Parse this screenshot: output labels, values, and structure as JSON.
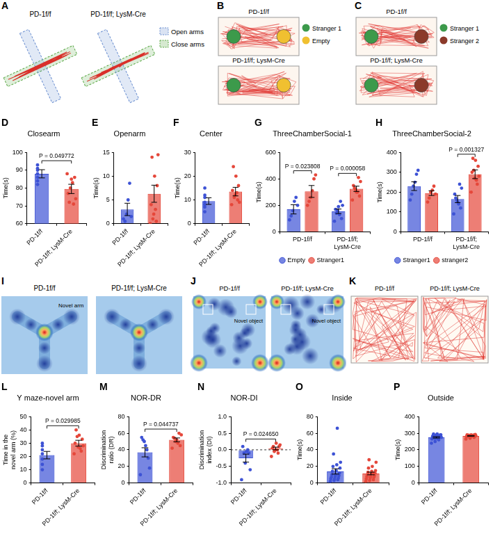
{
  "schematics": {
    "A": {
      "panel": "A",
      "titles": [
        "PD-1f/f",
        "PD-1f/f; LysM-Cre"
      ],
      "legend": [
        {
          "text": "Open arms",
          "color": "#6b8fd0"
        },
        {
          "text": "Close arms",
          "color": "#5aa845"
        }
      ]
    },
    "B": {
      "panel": "B",
      "titles": [
        "PD-1f/f",
        "PD-1f/f; LysM-Cre"
      ],
      "legend": [
        {
          "text": "Stranger 1",
          "color": "#3c9a4b"
        },
        {
          "text": "Empty",
          "color": "#f0c030"
        }
      ]
    },
    "C": {
      "panel": "C",
      "titles": [
        "PD-1f/f",
        "PD-1f/f; LysM-Cre"
      ],
      "legend": [
        {
          "text": "Stranger 1",
          "color": "#3c9a4b"
        },
        {
          "text": "Stranger 2",
          "color": "#8b3a2a"
        }
      ]
    },
    "I": {
      "panel": "I",
      "titles": [
        "PD-1f/f",
        "PD-1f/f; LysM-Cre"
      ],
      "label": "Novel arm"
    },
    "J": {
      "panel": "J",
      "titles": [
        "PD-1f/f",
        "PD-1f/f; LysM-Cre"
      ],
      "label": "Novel object"
    },
    "K": {
      "panel": "K",
      "titles": [
        "PD-1f/f",
        "PD-1f/f; LysM-Cre"
      ]
    }
  },
  "chart_data": [
    {
      "panel": "D",
      "type": "bar",
      "title": "Closearm",
      "y_label": "Time(s)",
      "categories": [
        "PD-1f/f",
        "PD-1f/f; LysM-Cre"
      ],
      "values": [
        88,
        79.5
      ],
      "errors": [
        2.3,
        2.6
      ],
      "points": [
        [
          93,
          90,
          88,
          86,
          84,
          91,
          82
        ],
        [
          88,
          86,
          83,
          80,
          77,
          74,
          71,
          85,
          72
        ]
      ],
      "colors": [
        "#3d52d5",
        "#e5473a"
      ],
      "ylim": [
        60,
        100
      ],
      "yticks": [
        60,
        70,
        80,
        90,
        100
      ],
      "grid": false,
      "annotations": [
        {
          "text": "P = 0.049772",
          "between": [
            "PD-1f/f",
            "PD-1f/f; LysM-Cre"
          ]
        }
      ]
    },
    {
      "panel": "E",
      "type": "bar",
      "title": "Openarm",
      "y_label": "Time(s)",
      "categories": [
        "PD-1f/f",
        "PD-1f/f; LysM-Cre"
      ],
      "values": [
        3,
        6.3
      ],
      "errors": [
        1.3,
        1.8
      ],
      "points": [
        [
          1,
          0.5,
          2,
          5,
          8.5,
          1.5
        ],
        [
          0,
          0.5,
          2,
          4,
          8,
          10,
          14,
          14.5,
          3,
          1
        ]
      ],
      "colors": [
        "#3d52d5",
        "#e5473a"
      ],
      "ylim": [
        0,
        15
      ],
      "yticks": [
        0,
        5,
        10,
        15
      ],
      "grid": false
    },
    {
      "panel": "F",
      "type": "bar",
      "title": "Center",
      "y_label": "Time(s)",
      "categories": [
        "PD-1f/f",
        "PD-1f/f; LysM-Cre"
      ],
      "values": [
        9.5,
        13.5
      ],
      "errors": [
        1.4,
        1.8
      ],
      "points": [
        [
          5,
          7,
          9,
          12,
          15,
          8,
          11
        ],
        [
          8,
          10,
          12,
          14,
          16,
          20,
          24,
          9,
          13,
          11
        ]
      ],
      "colors": [
        "#3d52d5",
        "#e5473a"
      ],
      "ylim": [
        0,
        30
      ],
      "yticks": [
        0,
        10,
        20,
        30
      ],
      "grid": false
    },
    {
      "panel": "G",
      "type": "bar",
      "title": "ThreeChamberSocial-1",
      "y_label": "Time(s)",
      "categories": [
        "PD-1f/f",
        "PD-1f/f; LysM-Cre"
      ],
      "series": [
        {
          "name": "Empty",
          "color": "#3d52d5",
          "values": [
            170,
            155
          ],
          "errors": [
            35,
            17
          ],
          "points": [
            [
              90,
              120,
              160,
              230,
              260,
              200
            ],
            [
              80,
              100,
              130,
              160,
              170,
              200,
              230,
              190,
              140
            ]
          ]
        },
        {
          "name": "Stranger1",
          "color": "#e5473a",
          "values": [
            305,
            325
          ],
          "errors": [
            45,
            20
          ],
          "points": [
            [
              200,
              230,
              260,
              310,
              400,
              430
            ],
            [
              240,
              270,
              300,
              320,
              350,
              380,
              410,
              300,
              330
            ]
          ]
        }
      ],
      "ylim": [
        0,
        600
      ],
      "yticks": [
        0,
        200,
        400,
        600
      ],
      "grid": false,
      "legend": "bottom",
      "annotations": [
        {
          "text": "P = 0.023808",
          "category": "PD-1f/f",
          "between": [
            "Empty",
            "Stranger1"
          ]
        },
        {
          "text": "P = 0.000058",
          "category": "PD-1f/f; LysM-Cre",
          "between": [
            "Empty",
            "Stranger1"
          ]
        }
      ]
    },
    {
      "panel": "H",
      "type": "bar",
      "title": "ThreeChamberSocial-2",
      "y_label": "Time(s)",
      "categories": [
        "PD-1f/f",
        "PD-1f/f; LysM-Cre"
      ],
      "series": [
        {
          "name": "Stranger1",
          "color": "#3d52d5",
          "values": [
            230,
            165
          ],
          "errors": [
            22,
            18
          ],
          "points": [
            [
              160,
              190,
              230,
              250,
              290,
              310
            ],
            [
              90,
              120,
              140,
              160,
              190,
              220,
              240,
              150,
              170
            ]
          ]
        },
        {
          "name": "stranger2",
          "color": "#e5473a",
          "values": [
            195,
            290
          ],
          "errors": [
            12,
            22
          ],
          "points": [
            [
              150,
              170,
              200,
              210,
              230,
              190
            ],
            [
              200,
              240,
              270,
              300,
              330,
              360,
              370,
              280,
              260,
              310
            ]
          ]
        }
      ],
      "ylim": [
        0,
        400
      ],
      "yticks": [
        0,
        100,
        200,
        300,
        400
      ],
      "grid": false,
      "legend": "bottom",
      "annotations": [
        {
          "text": "P = 0.001327",
          "category": "PD-1f/f; LysM-Cre",
          "between": [
            "Stranger1",
            "stranger2"
          ]
        }
      ]
    },
    {
      "panel": "L",
      "type": "bar",
      "title": "Y maze-novel arm",
      "y_label": "Time in the novel arm (%)",
      "categories": [
        "PD-1f/f",
        "PD-1f/f; LysM-Cre"
      ],
      "values": [
        21,
        30
      ],
      "errors": [
        2.8,
        2.2
      ],
      "points": [
        [
          10,
          14,
          18,
          22,
          25,
          28,
          30
        ],
        [
          22,
          24,
          27,
          30,
          33,
          36,
          40,
          28,
          26,
          35
        ]
      ],
      "colors": [
        "#3d52d5",
        "#e5473a"
      ],
      "ylim": [
        0,
        50
      ],
      "yticks": [
        0,
        10,
        20,
        30,
        40,
        50
      ],
      "grid": false,
      "annotations": [
        {
          "text": "P = 0.029985",
          "between": [
            "PD-1f/f",
            "PD-1f/f; LysM-Cre"
          ]
        }
      ]
    },
    {
      "panel": "M",
      "type": "bar",
      "title": "NOR-DR",
      "y_label": "Discrimination ratio (DR)",
      "categories": [
        "PD-1f/f",
        "PD-1f/f; LysM-Cre"
      ],
      "values": [
        37,
        52
      ],
      "errors": [
        5.5,
        2.3
      ],
      "points": [
        [
          10,
          18,
          30,
          40,
          45,
          50,
          52,
          55
        ],
        [
          42,
          45,
          48,
          50,
          55,
          58,
          60,
          52,
          54
        ]
      ],
      "colors": [
        "#3d52d5",
        "#e5473a"
      ],
      "ylim": [
        0,
        80
      ],
      "yticks": [
        0,
        20,
        40,
        60,
        80
      ],
      "grid": false,
      "annotations": [
        {
          "text": "P = 0.044737",
          "between": [
            "PD-1f/f",
            "PD-1f/f; LysM-Cre"
          ]
        }
      ]
    },
    {
      "panel": "N",
      "type": "bar",
      "title": "NOR-DI",
      "y_label": "Discrimination index (DI)",
      "categories": [
        "PD-1f/f",
        "PD-1f/f; LysM-Cre"
      ],
      "values": [
        -0.25,
        0.04
      ],
      "errors": [
        0.12,
        0.04
      ],
      "points": [
        [
          -0.9,
          -0.6,
          -0.1,
          0,
          -0.05,
          -0.4,
          -0.1,
          0.1
        ],
        [
          -0.2,
          -0.1,
          0,
          0.05,
          0.1,
          0.2,
          0.1,
          0.15,
          0,
          -0.05
        ]
      ],
      "colors": [
        "#3d52d5",
        "#e5473a"
      ],
      "ylim": [
        -1,
        1
      ],
      "yticks": [
        {
          "value": -1,
          "label": "-1.0"
        },
        {
          "value": -0.5,
          "label": "-0.5"
        },
        {
          "value": 0,
          "label": "0.0"
        },
        {
          "value": 0.5,
          "label": "0.5"
        },
        {
          "value": 1,
          "label": "1.0"
        }
      ],
      "grid": false,
      "annotations": [
        {
          "text": "P = 0.024650",
          "between": [
            "PD-1f/f",
            "PD-1f/f; LysM-Cre"
          ]
        }
      ]
    },
    {
      "panel": "O",
      "type": "bar",
      "title": "Inside",
      "y_label": "Time(s)",
      "categories": [
        "PD-1f/f",
        "PD-1f/f; LysM-Cre"
      ],
      "values": [
        14,
        11.5
      ],
      "errors": [
        3.2,
        1.6
      ],
      "points": [
        [
          2,
          3,
          4,
          5,
          5,
          6,
          7,
          8,
          9,
          10,
          10,
          12,
          14,
          15,
          18,
          20,
          22,
          25,
          35,
          66
        ],
        [
          2,
          3,
          4,
          5,
          6,
          7,
          8,
          8,
          9,
          10,
          11,
          12,
          13,
          14,
          15,
          18,
          20,
          25,
          28,
          12
        ]
      ],
      "colors": [
        "#3d52d5",
        "#e5473a"
      ],
      "ylim": [
        0,
        80
      ],
      "yticks": [
        0,
        20,
        40,
        60,
        80
      ],
      "grid": false
    },
    {
      "panel": "P",
      "type": "bar",
      "title": "Outside",
      "y_label": "Time(s)",
      "categories": [
        "PD-1f/f",
        "PD-1f/f; LysM-Cre"
      ],
      "values": [
        275,
        284
      ],
      "errors": [
        4,
        2
      ],
      "points": [
        [
          240,
          250,
          260,
          265,
          270,
          275,
          280,
          280,
          285,
          285,
          290,
          290,
          295,
          295,
          290,
          285,
          280,
          275,
          270,
          265
        ],
        [
          265,
          270,
          275,
          280,
          282,
          285,
          287,
          288,
          290,
          290,
          292,
          285,
          283,
          280,
          278,
          290,
          288,
          286
        ]
      ],
      "colors": [
        "#3d52d5",
        "#e5473a"
      ],
      "ylim": [
        0,
        400
      ],
      "yticks": [
        0,
        100,
        200,
        300,
        400
      ],
      "grid": false
    }
  ]
}
